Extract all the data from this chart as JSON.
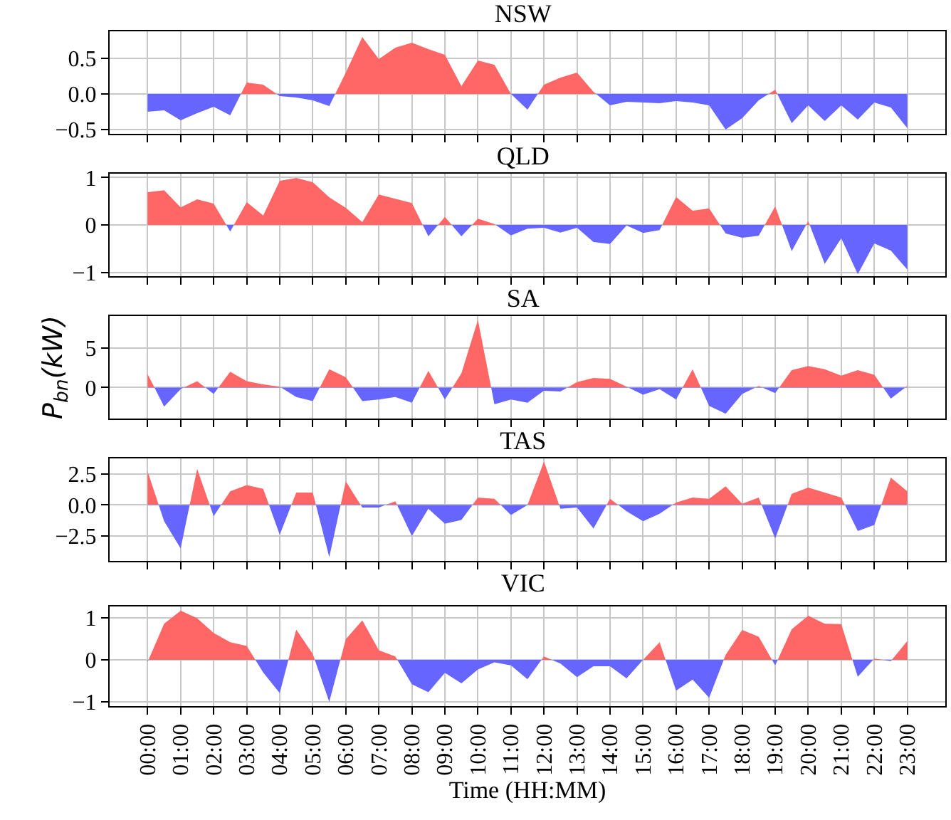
{
  "chart_data": [
    {
      "type": "area",
      "title": "NSW",
      "colors": [
        "#ff6666",
        "#6666ff"
      ],
      "x": [
        0,
        0.5,
        1,
        1.5,
        2,
        2.5,
        3,
        3.5,
        4,
        4.5,
        5,
        5.5,
        6,
        6.5,
        7,
        7.5,
        8,
        8.5,
        9,
        9.5,
        10,
        10.5,
        11,
        11.5,
        12,
        12.5,
        13,
        13.5,
        14,
        14.5,
        15,
        15.5,
        16,
        16.5,
        17,
        17.5,
        18,
        18.5,
        19,
        19.5,
        20,
        20.5,
        21,
        21.5,
        22,
        22.5,
        23
      ],
      "series": [
        {
          "values": [
            -0.25,
            -0.23,
            -0.37,
            -0.27,
            -0.18,
            -0.3,
            0.16,
            0.13,
            -0.03,
            -0.05,
            -0.09,
            -0.17,
            0.3,
            0.8,
            0.49,
            0.65,
            0.72,
            0.63,
            0.55,
            0.11,
            0.47,
            0.41,
            0,
            -0.22,
            0.13,
            0.23,
            0.3,
            0.03,
            -0.16,
            -0.11,
            -0.12,
            -0.13,
            -0.1,
            -0.12,
            -0.16,
            -0.5,
            -0.34,
            -0.09,
            0.06,
            -0.41,
            -0.16,
            -0.38,
            -0.16,
            -0.36,
            -0.12,
            -0.19,
            -0.48
          ]
        }
      ],
      "xlim": [
        -1.15,
        24.15
      ],
      "ylim": [
        -0.56,
        0.88
      ],
      "xticks": [
        {
          "value": 0,
          "label": null
        },
        {
          "value": 1,
          "label": null
        },
        {
          "value": 2,
          "label": null
        },
        {
          "value": 3,
          "label": null
        },
        {
          "value": 4,
          "label": null
        },
        {
          "value": 5,
          "label": null
        },
        {
          "value": 6,
          "label": null
        },
        {
          "value": 7,
          "label": null
        },
        {
          "value": 8,
          "label": null
        },
        {
          "value": 9,
          "label": null
        },
        {
          "value": 10,
          "label": null
        },
        {
          "value": 11,
          "label": null
        },
        {
          "value": 12,
          "label": null
        },
        {
          "value": 13,
          "label": null
        },
        {
          "value": 14,
          "label": null
        },
        {
          "value": 15,
          "label": null
        },
        {
          "value": 16,
          "label": null
        },
        {
          "value": 17,
          "label": null
        },
        {
          "value": 18,
          "label": null
        },
        {
          "value": 19,
          "label": null
        },
        {
          "value": 20,
          "label": null
        },
        {
          "value": 21,
          "label": null
        },
        {
          "value": 22,
          "label": null
        },
        {
          "value": 23,
          "label": null
        }
      ],
      "yticks": [
        {
          "value": -0.5,
          "label": "−0.5"
        },
        {
          "value": 0,
          "label": "0.0"
        },
        0.5
      ],
      "grid": true,
      "tick_labels": "y"
    },
    {
      "type": "area",
      "title": "QLD",
      "colors": [
        "#ff6666",
        "#6666ff"
      ],
      "x": [
        0,
        0.5,
        1,
        1.5,
        2,
        2.5,
        3,
        3.5,
        4,
        4.5,
        5,
        5.5,
        6,
        6.5,
        7,
        7.5,
        8,
        8.5,
        9,
        9.5,
        10,
        10.5,
        11,
        11.5,
        12,
        12.5,
        13,
        13.5,
        14,
        14.5,
        15,
        15.5,
        16,
        16.5,
        17,
        17.5,
        18,
        18.5,
        19,
        19.5,
        20,
        20.5,
        21,
        21.5,
        22,
        22.5,
        23
      ],
      "series": [
        {
          "values": [
            0.69,
            0.73,
            0.37,
            0.54,
            0.45,
            -0.14,
            0.48,
            0.2,
            0.93,
            0.99,
            0.9,
            0.58,
            0.36,
            0.06,
            0.64,
            0.55,
            0.46,
            -0.24,
            0.17,
            -0.24,
            0.13,
            0.02,
            -0.22,
            -0.08,
            -0.06,
            -0.16,
            -0.06,
            -0.36,
            -0.4,
            -0.01,
            -0.17,
            -0.11,
            0.59,
            0.3,
            0.35,
            -0.18,
            -0.27,
            -0.23,
            0.39,
            -0.55,
            0.08,
            -0.82,
            -0.28,
            -1.04,
            -0.39,
            -0.54,
            -0.94
          ]
        }
      ],
      "xlim": [
        -1.15,
        24.15
      ],
      "ylim": [
        -1.08,
        1.08
      ],
      "xticks": [
        {
          "value": 0,
          "label": null
        },
        {
          "value": 1,
          "label": null
        },
        {
          "value": 2,
          "label": null
        },
        {
          "value": 3,
          "label": null
        },
        {
          "value": 4,
          "label": null
        },
        {
          "value": 5,
          "label": null
        },
        {
          "value": 6,
          "label": null
        },
        {
          "value": 7,
          "label": null
        },
        {
          "value": 8,
          "label": null
        },
        {
          "value": 9,
          "label": null
        },
        {
          "value": 10,
          "label": null
        },
        {
          "value": 11,
          "label": null
        },
        {
          "value": 12,
          "label": null
        },
        {
          "value": 13,
          "label": null
        },
        {
          "value": 14,
          "label": null
        },
        {
          "value": 15,
          "label": null
        },
        {
          "value": 16,
          "label": null
        },
        {
          "value": 17,
          "label": null
        },
        {
          "value": 18,
          "label": null
        },
        {
          "value": 19,
          "label": null
        },
        {
          "value": 20,
          "label": null
        },
        {
          "value": 21,
          "label": null
        },
        {
          "value": 22,
          "label": null
        },
        {
          "value": 23,
          "label": null
        }
      ],
      "yticks": [
        {
          "value": -1,
          "label": "−1"
        },
        0,
        1
      ],
      "grid": true,
      "tick_labels": "y"
    },
    {
      "type": "area",
      "title": "SA",
      "ylabel": "P$_{bn}$(kW)",
      "colors": [
        "#ff6666",
        "#6666ff"
      ],
      "x": [
        0,
        0.5,
        1,
        1.5,
        2,
        2.5,
        3,
        3.5,
        4,
        4.5,
        5,
        5.5,
        6,
        6.5,
        7,
        7.5,
        8,
        8.5,
        9,
        9.5,
        10,
        10.5,
        11,
        11.5,
        12,
        12.5,
        13,
        13.5,
        14,
        14.5,
        15,
        15.5,
        16,
        16.5,
        17,
        17.5,
        18,
        18.5,
        19,
        19.5,
        20,
        20.5,
        21,
        21.5,
        22,
        22.5,
        23
      ],
      "series": [
        {
          "values": [
            1.7,
            -2.4,
            -0.2,
            0.8,
            -0.8,
            2,
            0.8,
            0.4,
            0.1,
            -1.2,
            -1.7,
            2.3,
            1.3,
            -1.7,
            -1.5,
            -1.2,
            -1.9,
            2.1,
            -1.5,
            1.8,
            8.5,
            -2.1,
            -1.5,
            -1.9,
            -0.4,
            -0.5,
            0.7,
            1.2,
            1.1,
            0.1,
            -0.9,
            -0.2,
            -1.5,
            2.3,
            -2.3,
            -3.3,
            -0.8,
            0.2,
            -0.7,
            2.2,
            2.7,
            2.3,
            1.5,
            2.2,
            1.6,
            -1.4,
            0.2
          ]
        }
      ],
      "xlim": [
        -1.15,
        24.15
      ],
      "ylim": [
        -3.9,
        9
      ],
      "xticks": [
        {
          "value": 0,
          "label": null
        },
        {
          "value": 1,
          "label": null
        },
        {
          "value": 2,
          "label": null
        },
        {
          "value": 3,
          "label": null
        },
        {
          "value": 4,
          "label": null
        },
        {
          "value": 5,
          "label": null
        },
        {
          "value": 6,
          "label": null
        },
        {
          "value": 7,
          "label": null
        },
        {
          "value": 8,
          "label": null
        },
        {
          "value": 9,
          "label": null
        },
        {
          "value": 10,
          "label": null
        },
        {
          "value": 11,
          "label": null
        },
        {
          "value": 12,
          "label": null
        },
        {
          "value": 13,
          "label": null
        },
        {
          "value": 14,
          "label": null
        },
        {
          "value": 15,
          "label": null
        },
        {
          "value": 16,
          "label": null
        },
        {
          "value": 17,
          "label": null
        },
        {
          "value": 18,
          "label": null
        },
        {
          "value": 19,
          "label": null
        },
        {
          "value": 20,
          "label": null
        },
        {
          "value": 21,
          "label": null
        },
        {
          "value": 22,
          "label": null
        },
        {
          "value": 23,
          "label": null
        }
      ],
      "yticks": [
        0,
        5
      ],
      "grid": true,
      "tick_labels": "y"
    },
    {
      "type": "area",
      "title": "TAS",
      "colors": [
        "#ff6666",
        "#6666ff"
      ],
      "x": [
        0,
        0.5,
        1,
        1.5,
        2,
        2.5,
        3,
        3.5,
        4,
        4.5,
        5,
        5.5,
        6,
        6.5,
        7,
        7.5,
        8,
        8.5,
        9,
        9.5,
        10,
        10.5,
        11,
        11.5,
        12,
        12.5,
        13,
        13.5,
        14,
        14.5,
        15,
        15.5,
        16,
        16.5,
        17,
        17.5,
        18,
        18.5,
        19,
        19.5,
        20,
        20.5,
        21,
        21.5,
        22,
        22.5,
        23
      ],
      "series": [
        {
          "values": [
            2.7,
            -1.3,
            -3.5,
            2.9,
            -0.9,
            1.1,
            1.6,
            1.3,
            -2.4,
            1,
            1,
            -4.2,
            1.9,
            -0.2,
            -0.2,
            0.3,
            -2.5,
            -0.3,
            -1.5,
            -1.2,
            0.6,
            0.5,
            -0.8,
            0,
            3.5,
            -0.3,
            -0.2,
            -1.9,
            0.5,
            -0.5,
            -1.3,
            -0.7,
            0.2,
            0.6,
            0.5,
            1.5,
            0.1,
            0.6,
            -2.7,
            0.9,
            1.4,
            1,
            0.6,
            -2.1,
            -1.6,
            2.2,
            1.1
          ]
        }
      ],
      "xlim": [
        -1.15,
        24.15
      ],
      "ylim": [
        -4.5,
        3.75
      ],
      "xticks": [
        {
          "value": 0,
          "label": null
        },
        {
          "value": 1,
          "label": null
        },
        {
          "value": 2,
          "label": null
        },
        {
          "value": 3,
          "label": null
        },
        {
          "value": 4,
          "label": null
        },
        {
          "value": 5,
          "label": null
        },
        {
          "value": 6,
          "label": null
        },
        {
          "value": 7,
          "label": null
        },
        {
          "value": 8,
          "label": null
        },
        {
          "value": 9,
          "label": null
        },
        {
          "value": 10,
          "label": null
        },
        {
          "value": 11,
          "label": null
        },
        {
          "value": 12,
          "label": null
        },
        {
          "value": 13,
          "label": null
        },
        {
          "value": 14,
          "label": null
        },
        {
          "value": 15,
          "label": null
        },
        {
          "value": 16,
          "label": null
        },
        {
          "value": 17,
          "label": null
        },
        {
          "value": 18,
          "label": null
        },
        {
          "value": 19,
          "label": null
        },
        {
          "value": 20,
          "label": null
        },
        {
          "value": 21,
          "label": null
        },
        {
          "value": 22,
          "label": null
        },
        {
          "value": 23,
          "label": null
        }
      ],
      "yticks": [
        {
          "value": -2.5,
          "label": "−2.5"
        },
        {
          "value": 0,
          "label": "0.0"
        },
        2.5
      ],
      "grid": true,
      "tick_labels": "y"
    },
    {
      "type": "area",
      "title": "VIC",
      "xlabel": "Time (HH:MM)",
      "colors": [
        "#ff6666",
        "#6666ff"
      ],
      "x": [
        0,
        0.5,
        1,
        1.5,
        2,
        2.5,
        3,
        3.5,
        4,
        4.5,
        5,
        5.5,
        6,
        6.5,
        7,
        7.5,
        8,
        8.5,
        9,
        9.5,
        10,
        10.5,
        11,
        11.5,
        12,
        12.5,
        13,
        13.5,
        14,
        14.5,
        15,
        15.5,
        16,
        16.5,
        17,
        17.5,
        18,
        18.5,
        19,
        19.5,
        20,
        20.5,
        21,
        21.5,
        22,
        22.5,
        23
      ],
      "series": [
        {
          "values": [
            -0.05,
            0.86,
            1.17,
            0.99,
            0.64,
            0.42,
            0.33,
            -0.3,
            -0.79,
            0.72,
            0.14,
            -1,
            0.49,
            0.94,
            0.23,
            0.08,
            -0.58,
            -0.77,
            -0.31,
            -0.56,
            -0.23,
            -0.06,
            -0.13,
            -0.46,
            0.08,
            -0.09,
            -0.41,
            -0.15,
            -0.15,
            -0.44,
            0,
            0.42,
            -0.73,
            -0.47,
            -0.9,
            0.12,
            0.71,
            0.55,
            -0.13,
            0.73,
            1.05,
            0.86,
            0.85,
            -0.4,
            0.03,
            -0.03,
            0.45
          ]
        }
      ],
      "xlim": [
        -1.15,
        24.15
      ],
      "ylim": [
        -1.1,
        1.27
      ],
      "xticks": [
        {
          "value": 0,
          "label": "00:00"
        },
        {
          "value": 1,
          "label": "01:00"
        },
        {
          "value": 2,
          "label": "02:00"
        },
        {
          "value": 3,
          "label": "03:00"
        },
        {
          "value": 4,
          "label": "04:00"
        },
        {
          "value": 5,
          "label": "05:00"
        },
        {
          "value": 6,
          "label": "06:00"
        },
        {
          "value": 7,
          "label": "07:00"
        },
        {
          "value": 8,
          "label": "08:00"
        },
        {
          "value": 9,
          "label": "09:00"
        },
        {
          "value": 10,
          "label": "10:00"
        },
        {
          "value": 11,
          "label": "11:00"
        },
        {
          "value": 12,
          "label": "12:00"
        },
        {
          "value": 13,
          "label": "13:00"
        },
        {
          "value": 14,
          "label": "14:00"
        },
        {
          "value": 15,
          "label": "15:00"
        },
        {
          "value": 16,
          "label": "16:00"
        },
        {
          "value": 17,
          "label": "17:00"
        },
        {
          "value": 18,
          "label": "18:00"
        },
        {
          "value": 19,
          "label": "19:00"
        },
        {
          "value": 20,
          "label": "20:00"
        },
        {
          "value": 21,
          "label": "21:00"
        },
        {
          "value": 22,
          "label": "22:00"
        },
        {
          "value": 23,
          "label": "23:00"
        }
      ],
      "yticks": [
        {
          "value": -1,
          "label": "−1"
        },
        0,
        1
      ],
      "grid": true
    }
  ]
}
